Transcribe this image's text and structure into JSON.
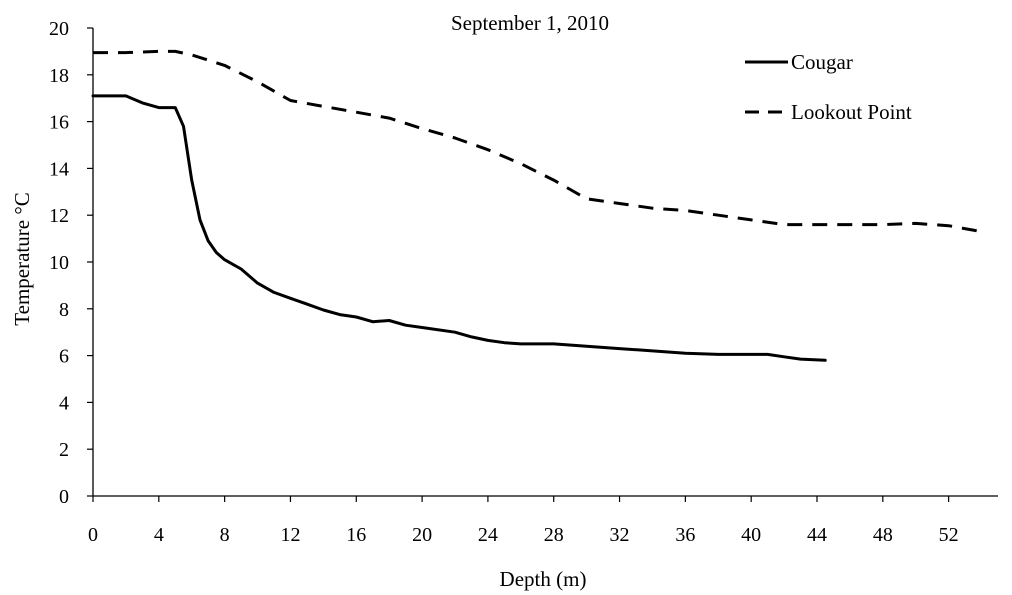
{
  "chart_data": {
    "type": "line",
    "title": "September 1, 2010",
    "xlabel": "Depth (m)",
    "ylabel": "Temperature °C",
    "xlim": [
      0,
      55
    ],
    "ylim": [
      0,
      20
    ],
    "x_ticks": [
      0,
      4,
      8,
      12,
      16,
      20,
      24,
      28,
      32,
      36,
      40,
      44,
      48,
      52
    ],
    "y_ticks": [
      0,
      2,
      4,
      6,
      8,
      10,
      12,
      14,
      16,
      18,
      20
    ],
    "grid": false,
    "legend_position": "top-right",
    "series": [
      {
        "name": "Cougar",
        "style": "solid",
        "color": "#000000",
        "points": [
          [
            0,
            17.1
          ],
          [
            2,
            17.1
          ],
          [
            3,
            16.8
          ],
          [
            4,
            16.6
          ],
          [
            5,
            16.6
          ],
          [
            5.5,
            15.8
          ],
          [
            6,
            13.5
          ],
          [
            6.5,
            11.8
          ],
          [
            7,
            10.9
          ],
          [
            7.5,
            10.4
          ],
          [
            8,
            10.1
          ],
          [
            9,
            9.7
          ],
          [
            10,
            9.1
          ],
          [
            11,
            8.7
          ],
          [
            12,
            8.45
          ],
          [
            13,
            8.2
          ],
          [
            14,
            7.95
          ],
          [
            15,
            7.75
          ],
          [
            16,
            7.65
          ],
          [
            17,
            7.45
          ],
          [
            18,
            7.5
          ],
          [
            19,
            7.3
          ],
          [
            20,
            7.2
          ],
          [
            22,
            7.0
          ],
          [
            23,
            6.8
          ],
          [
            24,
            6.65
          ],
          [
            25,
            6.55
          ],
          [
            26,
            6.5
          ],
          [
            28,
            6.5
          ],
          [
            30,
            6.4
          ],
          [
            32,
            6.3
          ],
          [
            34,
            6.2
          ],
          [
            36,
            6.1
          ],
          [
            38,
            6.05
          ],
          [
            40,
            6.05
          ],
          [
            41,
            6.05
          ],
          [
            42,
            5.95
          ],
          [
            43,
            5.85
          ],
          [
            44.5,
            5.8
          ]
        ]
      },
      {
        "name": "Lookout Point",
        "style": "dashed",
        "color": "#000000",
        "points": [
          [
            0,
            18.95
          ],
          [
            2,
            18.95
          ],
          [
            4,
            19.0
          ],
          [
            5,
            19.0
          ],
          [
            6,
            18.85
          ],
          [
            8,
            18.4
          ],
          [
            10,
            17.7
          ],
          [
            12,
            16.9
          ],
          [
            14,
            16.65
          ],
          [
            16,
            16.4
          ],
          [
            18,
            16.15
          ],
          [
            20,
            15.7
          ],
          [
            22,
            15.3
          ],
          [
            24,
            14.8
          ],
          [
            26,
            14.2
          ],
          [
            28,
            13.5
          ],
          [
            30,
            12.7
          ],
          [
            32,
            12.5
          ],
          [
            34,
            12.3
          ],
          [
            36,
            12.2
          ],
          [
            38,
            12.0
          ],
          [
            40,
            11.8
          ],
          [
            42,
            11.6
          ],
          [
            44,
            11.6
          ],
          [
            46,
            11.6
          ],
          [
            48,
            11.6
          ],
          [
            50,
            11.65
          ],
          [
            52,
            11.55
          ],
          [
            54,
            11.3
          ]
        ]
      }
    ]
  }
}
